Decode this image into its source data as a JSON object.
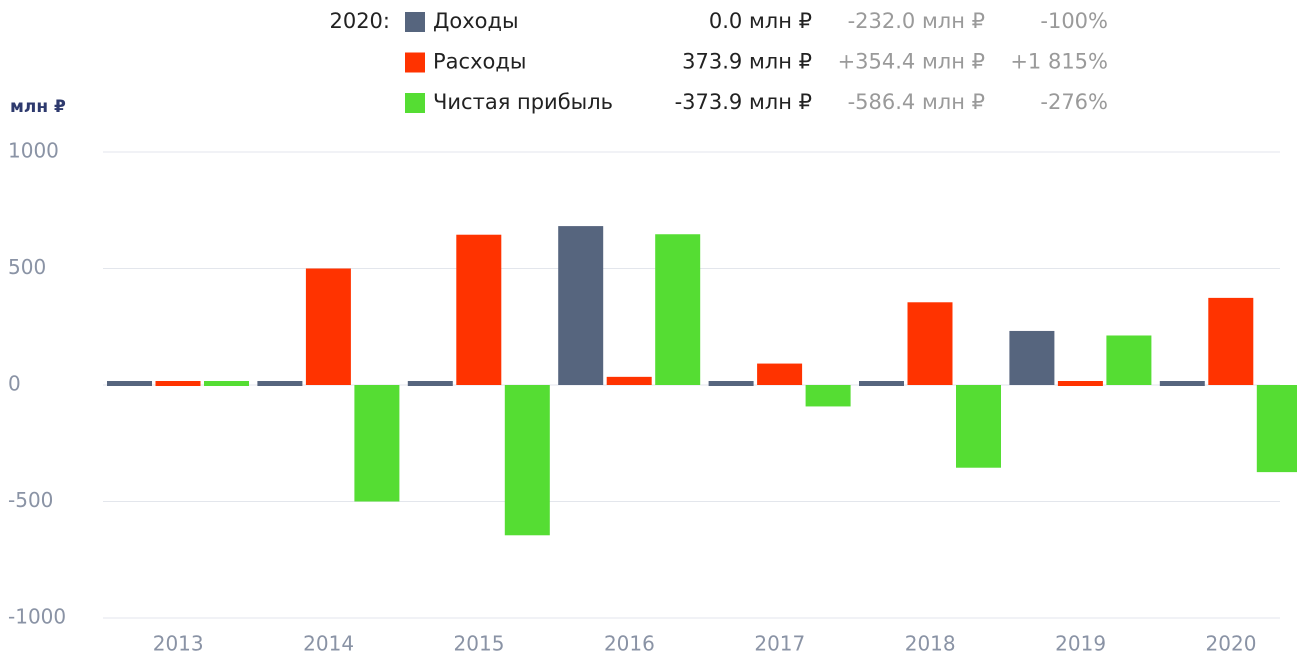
{
  "chart_data": {
    "type": "bar",
    "y_unit": "млн ₽",
    "legend_year": "2020:",
    "categories": [
      "2013",
      "2014",
      "2015",
      "2016",
      "2017",
      "2018",
      "2019",
      "2020"
    ],
    "series": [
      {
        "name": "Доходы",
        "color": "#56657e",
        "values": [
          0,
          0,
          0,
          682,
          0,
          0,
          232.0,
          0.0
        ],
        "legend_value": "0.0 млн ₽",
        "legend_change": "-232.0 млн ₽",
        "legend_pct": "-100%"
      },
      {
        "name": "Расходы",
        "color": "#ff3300",
        "values": [
          0,
          500,
          645,
          35,
          92,
          355,
          19.5,
          373.9
        ],
        "legend_value": "373.9 млн ₽",
        "legend_change": "+354.4 млн ₽",
        "legend_pct": "+1 815%"
      },
      {
        "name": "Чистая прибыль",
        "color": "#55dd33",
        "values": [
          0,
          -500,
          -645,
          647,
          -92,
          -355,
          212.5,
          -373.9
        ],
        "legend_value": "-373.9 млн ₽",
        "legend_change": "-586.4 млн ₽",
        "legend_pct": "-276%"
      }
    ],
    "ylim": [
      -1000,
      1000
    ],
    "yticks": [
      -1000,
      -500,
      0,
      500,
      1000
    ],
    "grid": true
  }
}
